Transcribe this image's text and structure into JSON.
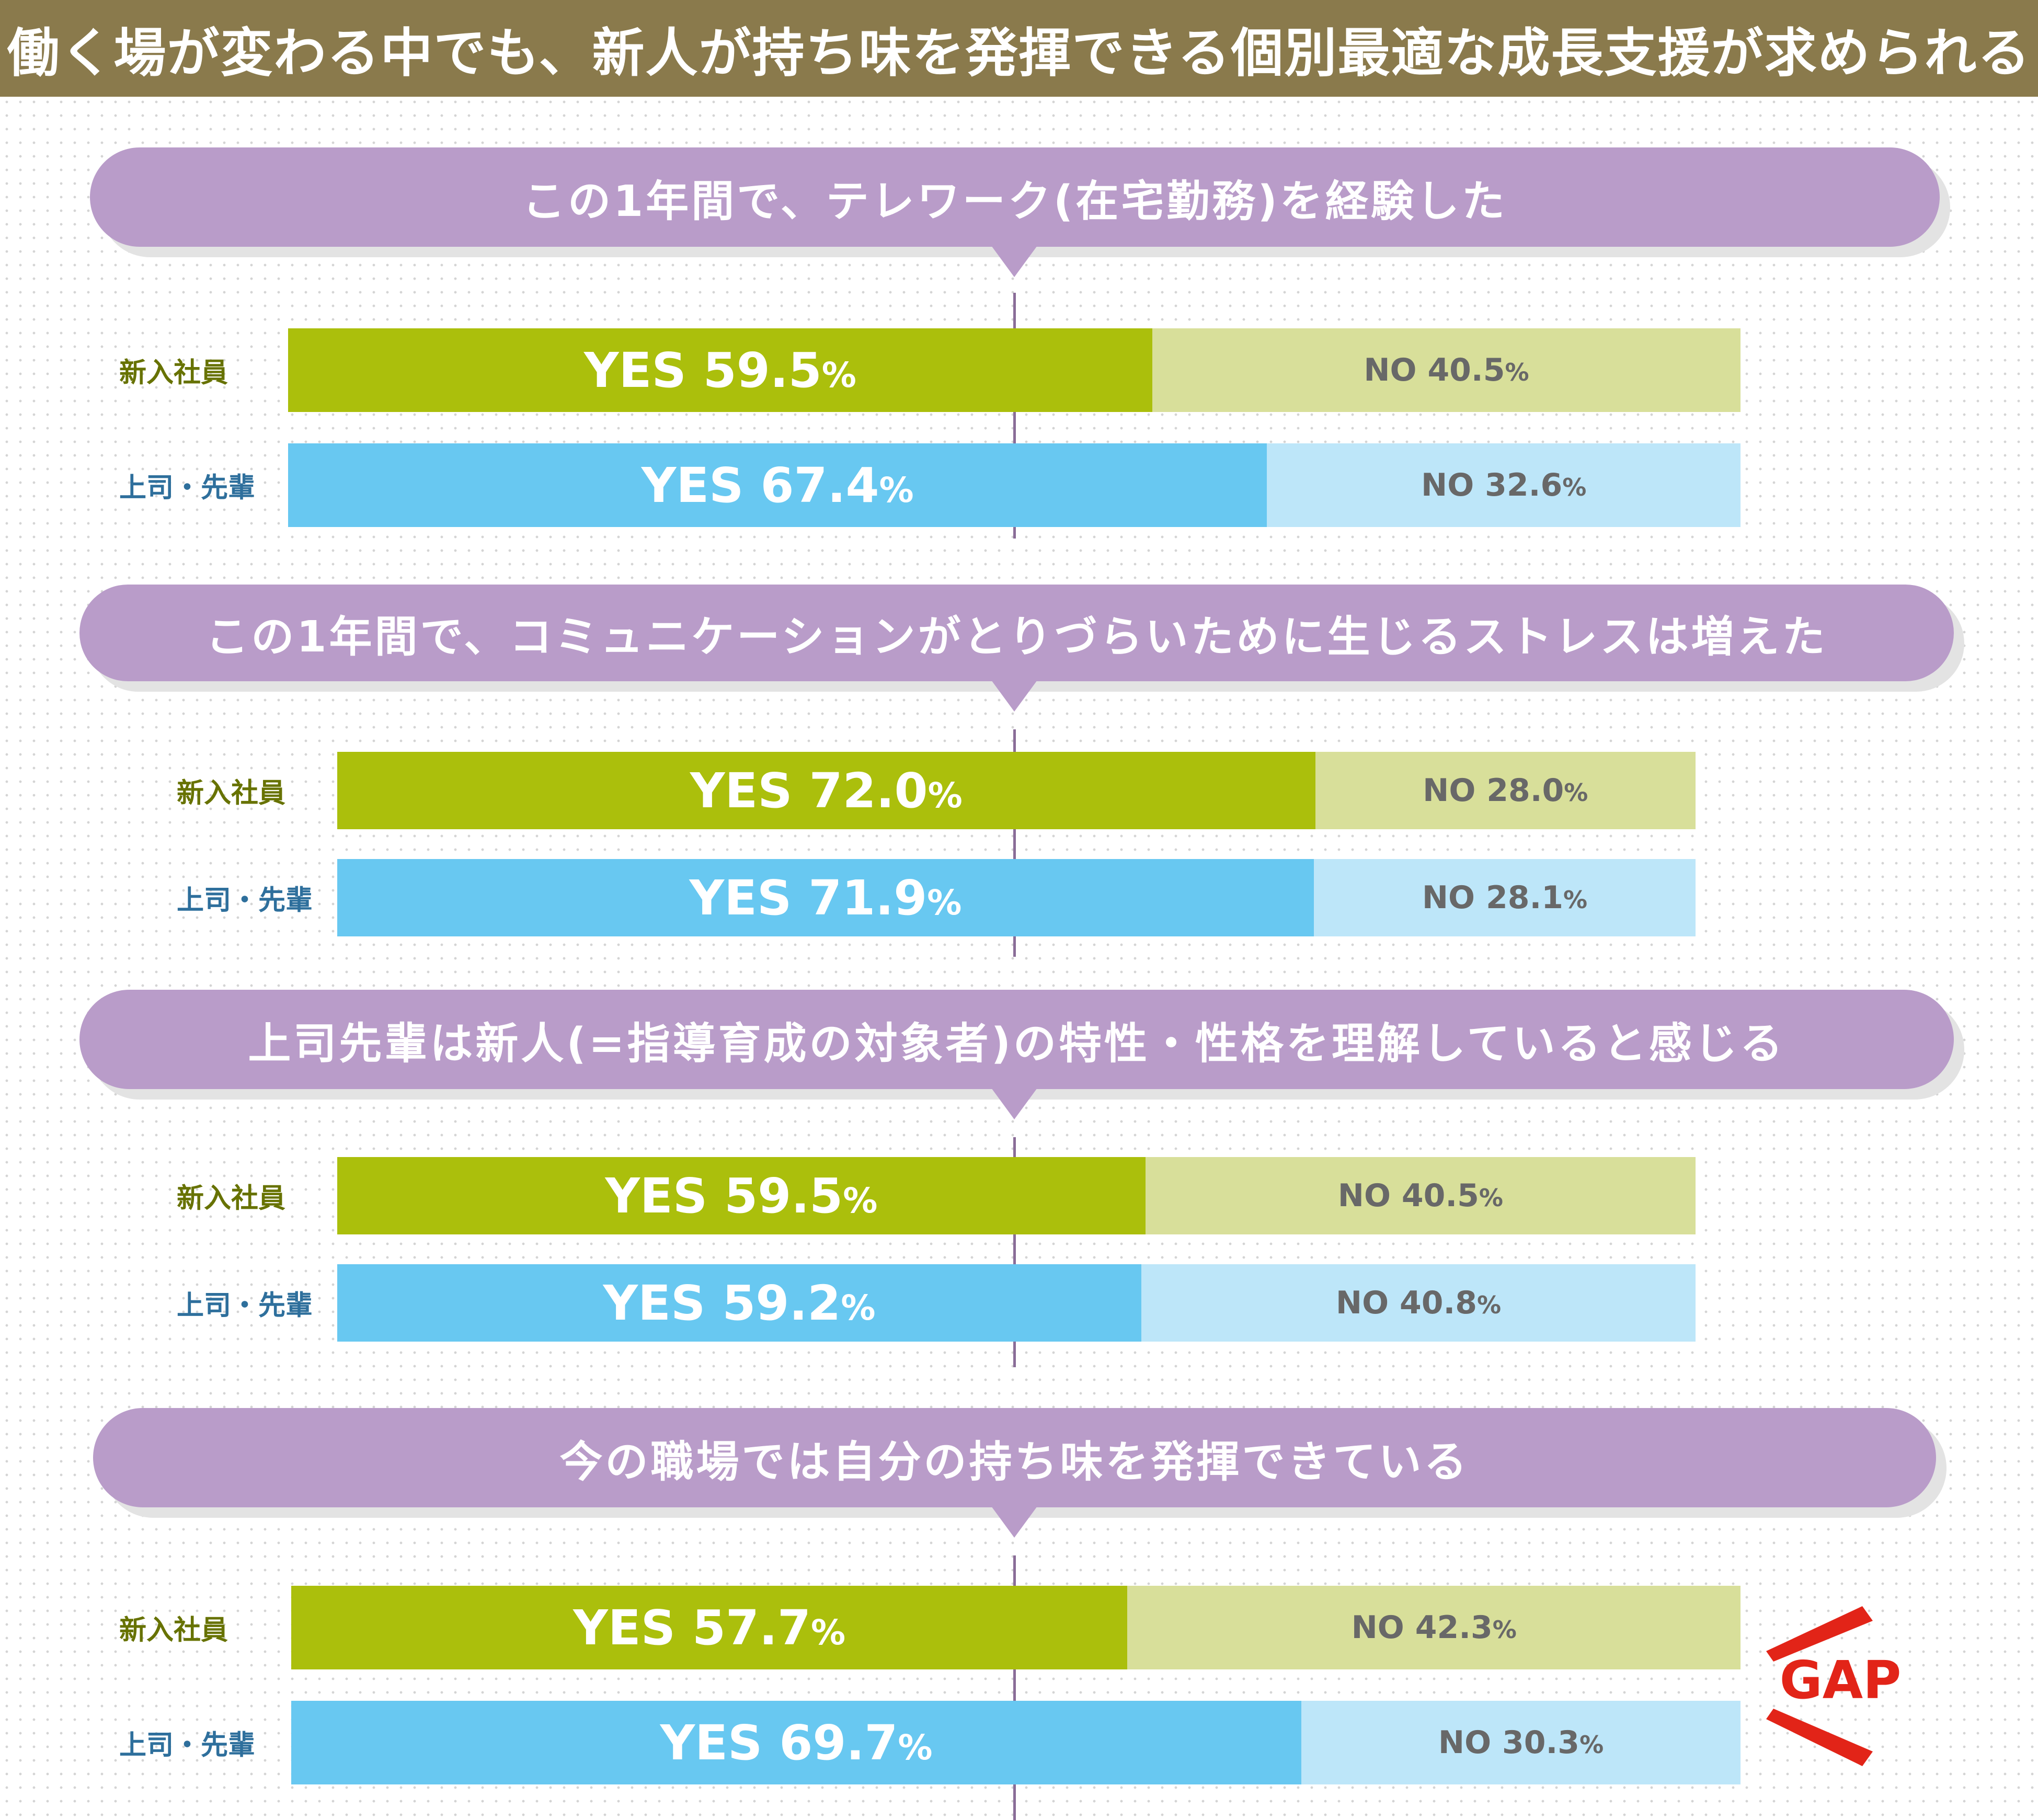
{
  "headline": "働く場が変わる中でも、新人が持ち味を発揮できる個別最適な成長支援が求められる",
  "labels": {
    "new": "新入社員",
    "boss": "上司・先輩",
    "yes": "YES",
    "no": "NO",
    "percent": "%"
  },
  "gap_label": "GAP",
  "colors": {
    "banner": "#8a7a4c",
    "question_pill": "#b99cc9",
    "new_yes": "#abbf0c",
    "new_no": "#d8df9a",
    "boss_yes": "#68c8f1",
    "boss_no": "#bde6f9",
    "gap": "#e22418"
  },
  "chart_data": {
    "type": "bar",
    "orientation": "horizontal",
    "stacked": true,
    "normalized": true,
    "value_unit": "%",
    "series_names": [
      "YES",
      "NO"
    ],
    "questions": [
      {
        "title": "この1年間で、テレワーク(在宅勤務)を経験した",
        "rows": [
          {
            "group": "新入社員",
            "yes": "59.5",
            "no": "40.5"
          },
          {
            "group": "上司・先輩",
            "yes": "67.4",
            "no": "32.6"
          }
        ]
      },
      {
        "title": "この1年間で、コミュニケーションがとりづらいために生じるストレスは増えた",
        "rows": [
          {
            "group": "新入社員",
            "yes": "72.0",
            "no": "28.0"
          },
          {
            "group": "上司・先輩",
            "yes": "71.9",
            "no": "28.1"
          }
        ]
      },
      {
        "title": "上司先輩は新人(=指導育成の対象者)の特性・性格を理解していると感じる",
        "rows": [
          {
            "group": "新入社員",
            "yes": "59.5",
            "no": "40.5"
          },
          {
            "group": "上司・先輩",
            "yes": "59.2",
            "no": "40.8"
          }
        ]
      },
      {
        "title": "今の職場では自分の持ち味を発揮できている",
        "rows": [
          {
            "group": "新入社員",
            "yes": "57.7",
            "no": "42.3"
          },
          {
            "group": "上司・先輩",
            "yes": "69.7",
            "no": "30.3"
          }
        ]
      }
    ]
  }
}
